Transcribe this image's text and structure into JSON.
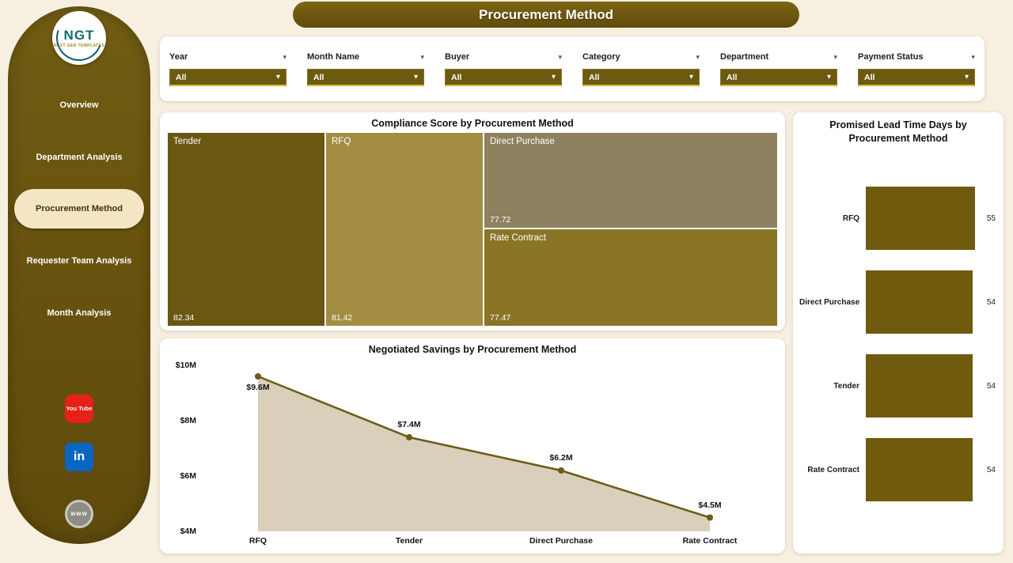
{
  "header": {
    "title": "Procurement Method"
  },
  "sidebar": {
    "logo": {
      "brand": "NGT",
      "subtitle": "NEXT GEN TEMPLATES"
    },
    "items": [
      {
        "label": "Overview",
        "active": false
      },
      {
        "label": "Department Analysis",
        "active": false
      },
      {
        "label": "Procurement Method",
        "active": true
      },
      {
        "label": "Requester Team Analysis",
        "active": false
      },
      {
        "label": "Month Analysis",
        "active": false
      }
    ],
    "social": [
      {
        "name": "youtube",
        "label": "You Tube"
      },
      {
        "name": "linkedin",
        "label": "in"
      },
      {
        "name": "website",
        "label": "WWW"
      }
    ]
  },
  "icons": {
    "chevron_down": "▾"
  },
  "filters": [
    {
      "label": "Year",
      "value": "All"
    },
    {
      "label": "Month Name",
      "value": "All"
    },
    {
      "label": "Buyer",
      "value": "All"
    },
    {
      "label": "Category",
      "value": "All"
    },
    {
      "label": "Department",
      "value": "All"
    },
    {
      "label": "Payment Status",
      "value": "All"
    }
  ],
  "colors": {
    "accent_dark": "#6b5711",
    "area_fill": "#d9cfbb",
    "line": "#6d5a16",
    "bar": "#6f5a0e"
  },
  "chart_data": [
    {
      "type": "treemap",
      "title": "Compliance Score by Procurement Method",
      "items": [
        {
          "label": "Tender",
          "value": 82.34,
          "color": "#6a5712"
        },
        {
          "label": "RFQ",
          "value": 81.42,
          "color": "#a28d43"
        },
        {
          "label": "Direct Purchase",
          "value": 77.72,
          "color": "#8d8160"
        },
        {
          "label": "Rate Contract",
          "value": 77.47,
          "color": "#8a7527"
        }
      ]
    },
    {
      "type": "area",
      "title": "Negotiated Savings by Procurement Method",
      "categories": [
        "RFQ",
        "Tender",
        "Direct Purchase",
        "Rate Contract"
      ],
      "values": [
        9.6,
        7.4,
        6.2,
        4.5
      ],
      "point_labels": [
        "$9.6M",
        "$7.4M",
        "$6.2M",
        "$4.5M"
      ],
      "y_ticks": [
        "$10M",
        "$8M",
        "$6M",
        "$4M"
      ],
      "ylim": [
        4,
        10
      ]
    },
    {
      "type": "bar",
      "orientation": "horizontal",
      "title": "Promised Lead Time Days by Procurement Method",
      "categories": [
        "RFQ",
        "Direct Purchase",
        "Tender",
        "Rate Contract"
      ],
      "values": [
        55,
        54,
        54,
        54
      ]
    }
  ]
}
